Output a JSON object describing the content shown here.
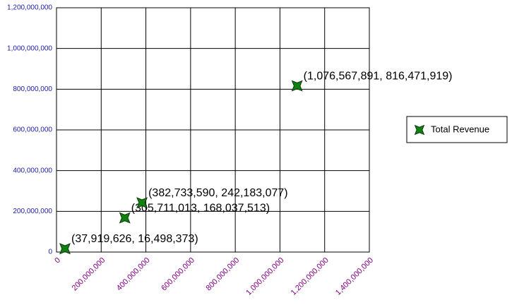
{
  "chart_data": {
    "type": "scatter",
    "series": [
      {
        "name": "Total Revenue",
        "color": "#108010",
        "x": [
          37919626,
          305711013,
          382733590,
          1076567891
        ],
        "values": [
          16498373,
          168037513,
          242183077,
          816471919
        ],
        "value_labels": [
          "(37,919,626, 16,498,373)",
          "(305,711,013, 168,037,513)",
          "(382,733,590, 242,183,077)",
          "(1,076,567,891, 816,471,919)"
        ]
      }
    ],
    "xlim": [
      0,
      1400000000
    ],
    "xticks": [
      0,
      {
        "value": 200000000,
        "label": "200,000,000"
      },
      {
        "value": 400000000,
        "label": "400,000,000"
      },
      {
        "value": 600000000,
        "label": "600,000,000"
      },
      {
        "value": 800000000,
        "label": "800,000,000"
      },
      {
        "value": 1000000000,
        "label": "1,000,000,000"
      },
      {
        "value": 1200000000,
        "label": "1,200,000,000"
      },
      {
        "value": 1400000000,
        "label": "1,400,000,000"
      }
    ],
    "ylim": [
      0,
      1200000000
    ],
    "yticks": [
      0,
      {
        "value": 200000000,
        "label": "200,000,000"
      },
      {
        "value": 400000000,
        "label": "400,000,000"
      },
      {
        "value": 600000000,
        "label": "600,000,000"
      },
      {
        "value": 800000000,
        "label": "800,000,000"
      },
      {
        "value": 1000000000,
        "label": "1,000,000,000"
      },
      {
        "value": 1200000000,
        "label": "1,200,000,000"
      }
    ],
    "grid": true,
    "legend": "right"
  }
}
